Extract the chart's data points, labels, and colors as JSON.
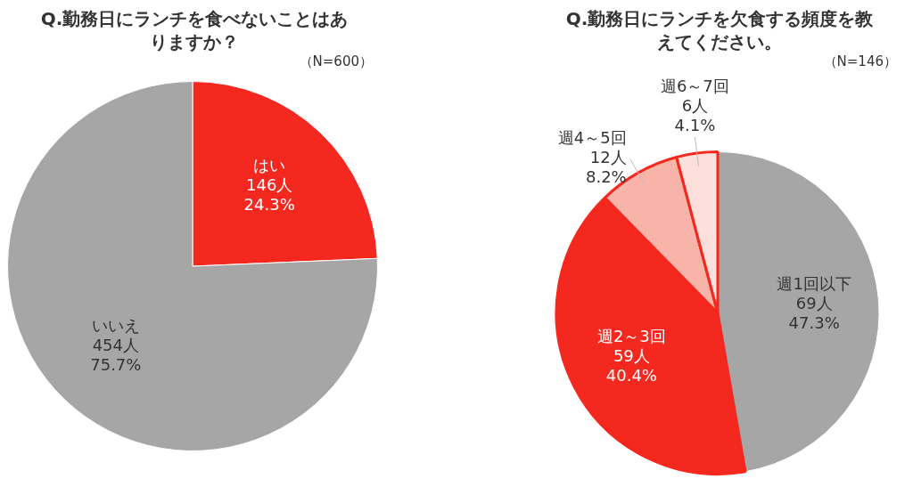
{
  "chart_data": [
    {
      "type": "pie",
      "title": "Q.勤務日にランチを食べないことはありますか？",
      "annotations": [
        "（N=600）"
      ],
      "categories": [
        "はい",
        "いいえ"
      ],
      "values": [
        146,
        454
      ],
      "colors": [
        "#f4281e",
        "#a6a6a6"
      ],
      "value_labels": [
        "146人\n24.3%",
        "454人\n75.7%"
      ],
      "legend": false
    },
    {
      "type": "pie",
      "title": "Q.勤務日にランチを欠食する頻度を教えてください。",
      "annotations": [
        "（N=146）"
      ],
      "categories": [
        "週1回以下",
        "週2～3回",
        "週4～5回",
        "週6～7回"
      ],
      "values": [
        69,
        59,
        12,
        6
      ],
      "colors": [
        "#a6a6a6",
        "#f4281e",
        "#f9b4a9",
        "#fde0dc"
      ],
      "value_labels": [
        "69人\n47.3%",
        "59人\n40.4%",
        "12人\n8.2%",
        "6人\n4.1%"
      ],
      "legend": false
    }
  ]
}
